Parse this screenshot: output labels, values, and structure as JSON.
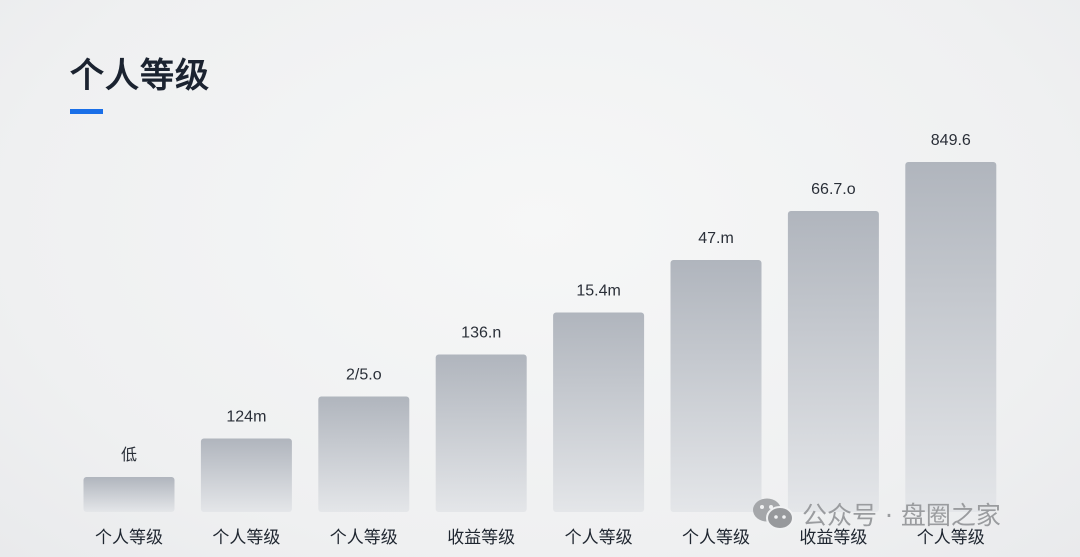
{
  "title": "个人等级",
  "accent_color": "#1a6fe8",
  "watermark": {
    "icon": "wechat-icon",
    "text": "公众号 · 盘圈之家"
  },
  "chart_data": {
    "type": "bar",
    "title": "个人等级",
    "categories": [
      "个人等级",
      "个人等级",
      "个人等级",
      "收益等级",
      "个人等级",
      "个人等级",
      "收益等级",
      "个人等级"
    ],
    "data_labels": [
      "低",
      "124m",
      "2/5.o",
      "136.n",
      "15.4m",
      "47.m",
      "66.7.o",
      "849.6"
    ],
    "values_relative_to_max": [
      0.1,
      0.21,
      0.33,
      0.45,
      0.57,
      0.72,
      0.86,
      1.0
    ],
    "grid": false,
    "legend": "none",
    "bar_color_top": "#b0b5bd",
    "bar_color_bottom": "#e4e6e9"
  }
}
